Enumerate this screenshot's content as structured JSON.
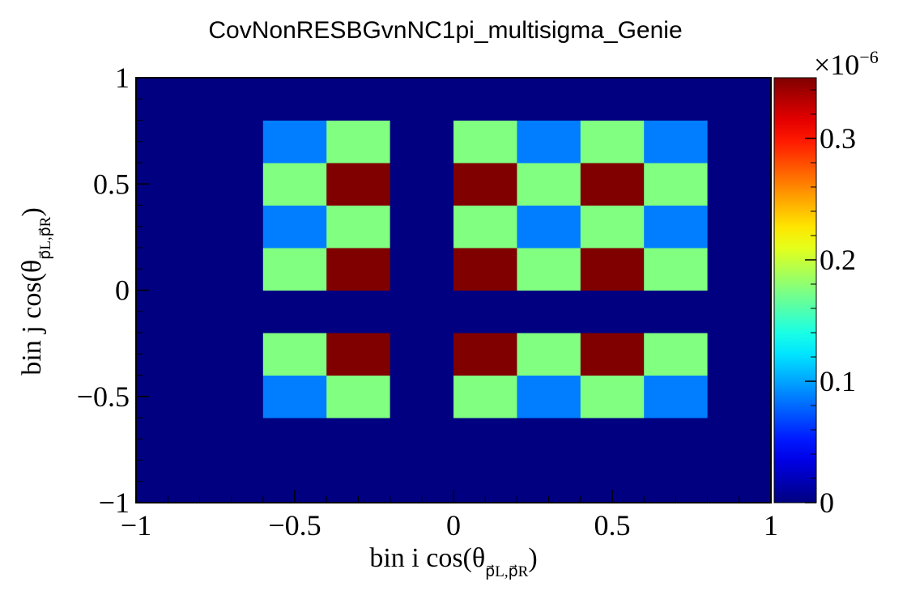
{
  "chart_data": {
    "type": "heatmap",
    "title": "CovNonRESBGvnNC1pi_multisigma_Genie",
    "xlabel": {
      "main": "bin i cos(θ",
      "subscript": "p⃗L,p⃗R",
      "close": ")"
    },
    "ylabel": {
      "main": "bin j cos(θ",
      "subscript": "p⃗L,p⃗R",
      "close": ")"
    },
    "xlim": [
      -1,
      1
    ],
    "ylim": [
      -1,
      1
    ],
    "x_ticks": [
      {
        "value": -1,
        "label": "−1"
      },
      {
        "value": -0.5,
        "label": "−0.5"
      },
      {
        "value": 0,
        "label": "0"
      },
      {
        "value": 0.5,
        "label": "0.5"
      },
      {
        "value": 1,
        "label": "1"
      }
    ],
    "y_ticks": [
      {
        "value": -1,
        "label": "−1"
      },
      {
        "value": -0.5,
        "label": "−0.5"
      },
      {
        "value": 0,
        "label": "0"
      },
      {
        "value": 0.5,
        "label": "0.5"
      },
      {
        "value": 1,
        "label": "1"
      }
    ],
    "x_edges": [
      -1,
      -0.8,
      -0.6,
      -0.4,
      -0.2,
      0,
      0.2,
      0.4,
      0.6,
      0.8,
      1
    ],
    "y_edges": [
      -1,
      -0.8,
      -0.6,
      -0.4,
      -0.2,
      0,
      0.2,
      0.4,
      0.6,
      0.8,
      1
    ],
    "z_rows_bottom_to_top": [
      [
        0,
        0,
        0,
        0,
        0,
        0,
        0,
        0,
        0,
        0
      ],
      [
        0,
        0,
        0,
        0,
        0,
        0,
        0,
        0,
        0,
        0
      ],
      [
        0,
        0,
        0.087,
        0.175,
        0,
        0.175,
        0.087,
        0.175,
        0.087,
        0
      ],
      [
        0,
        0,
        0.175,
        0.35,
        0,
        0.35,
        0.175,
        0.35,
        0.175,
        0
      ],
      [
        0,
        0,
        0,
        0,
        0,
        0,
        0,
        0,
        0,
        0
      ],
      [
        0,
        0,
        0.175,
        0.35,
        0,
        0.35,
        0.175,
        0.35,
        0.175,
        0
      ],
      [
        0,
        0,
        0.087,
        0.175,
        0,
        0.175,
        0.087,
        0.175,
        0.087,
        0
      ],
      [
        0,
        0,
        0.175,
        0.35,
        0,
        0.35,
        0.175,
        0.35,
        0.175,
        0
      ],
      [
        0,
        0,
        0.087,
        0.175,
        0,
        0.175,
        0.087,
        0.175,
        0.087,
        0
      ],
      [
        0,
        0,
        0,
        0,
        0,
        0,
        0,
        0,
        0,
        0
      ]
    ],
    "z_unit_multiplier": "×10",
    "z_unit_exponent": "−6",
    "zlim": [
      0,
      0.35
    ],
    "colorbar_ticks": [
      {
        "value": 0,
        "label": "0"
      },
      {
        "value": 0.1,
        "label": "0.1"
      },
      {
        "value": 0.2,
        "label": "0.2"
      },
      {
        "value": 0.3,
        "label": "0.3"
      }
    ],
    "colormap": "jet",
    "grid": false
  }
}
